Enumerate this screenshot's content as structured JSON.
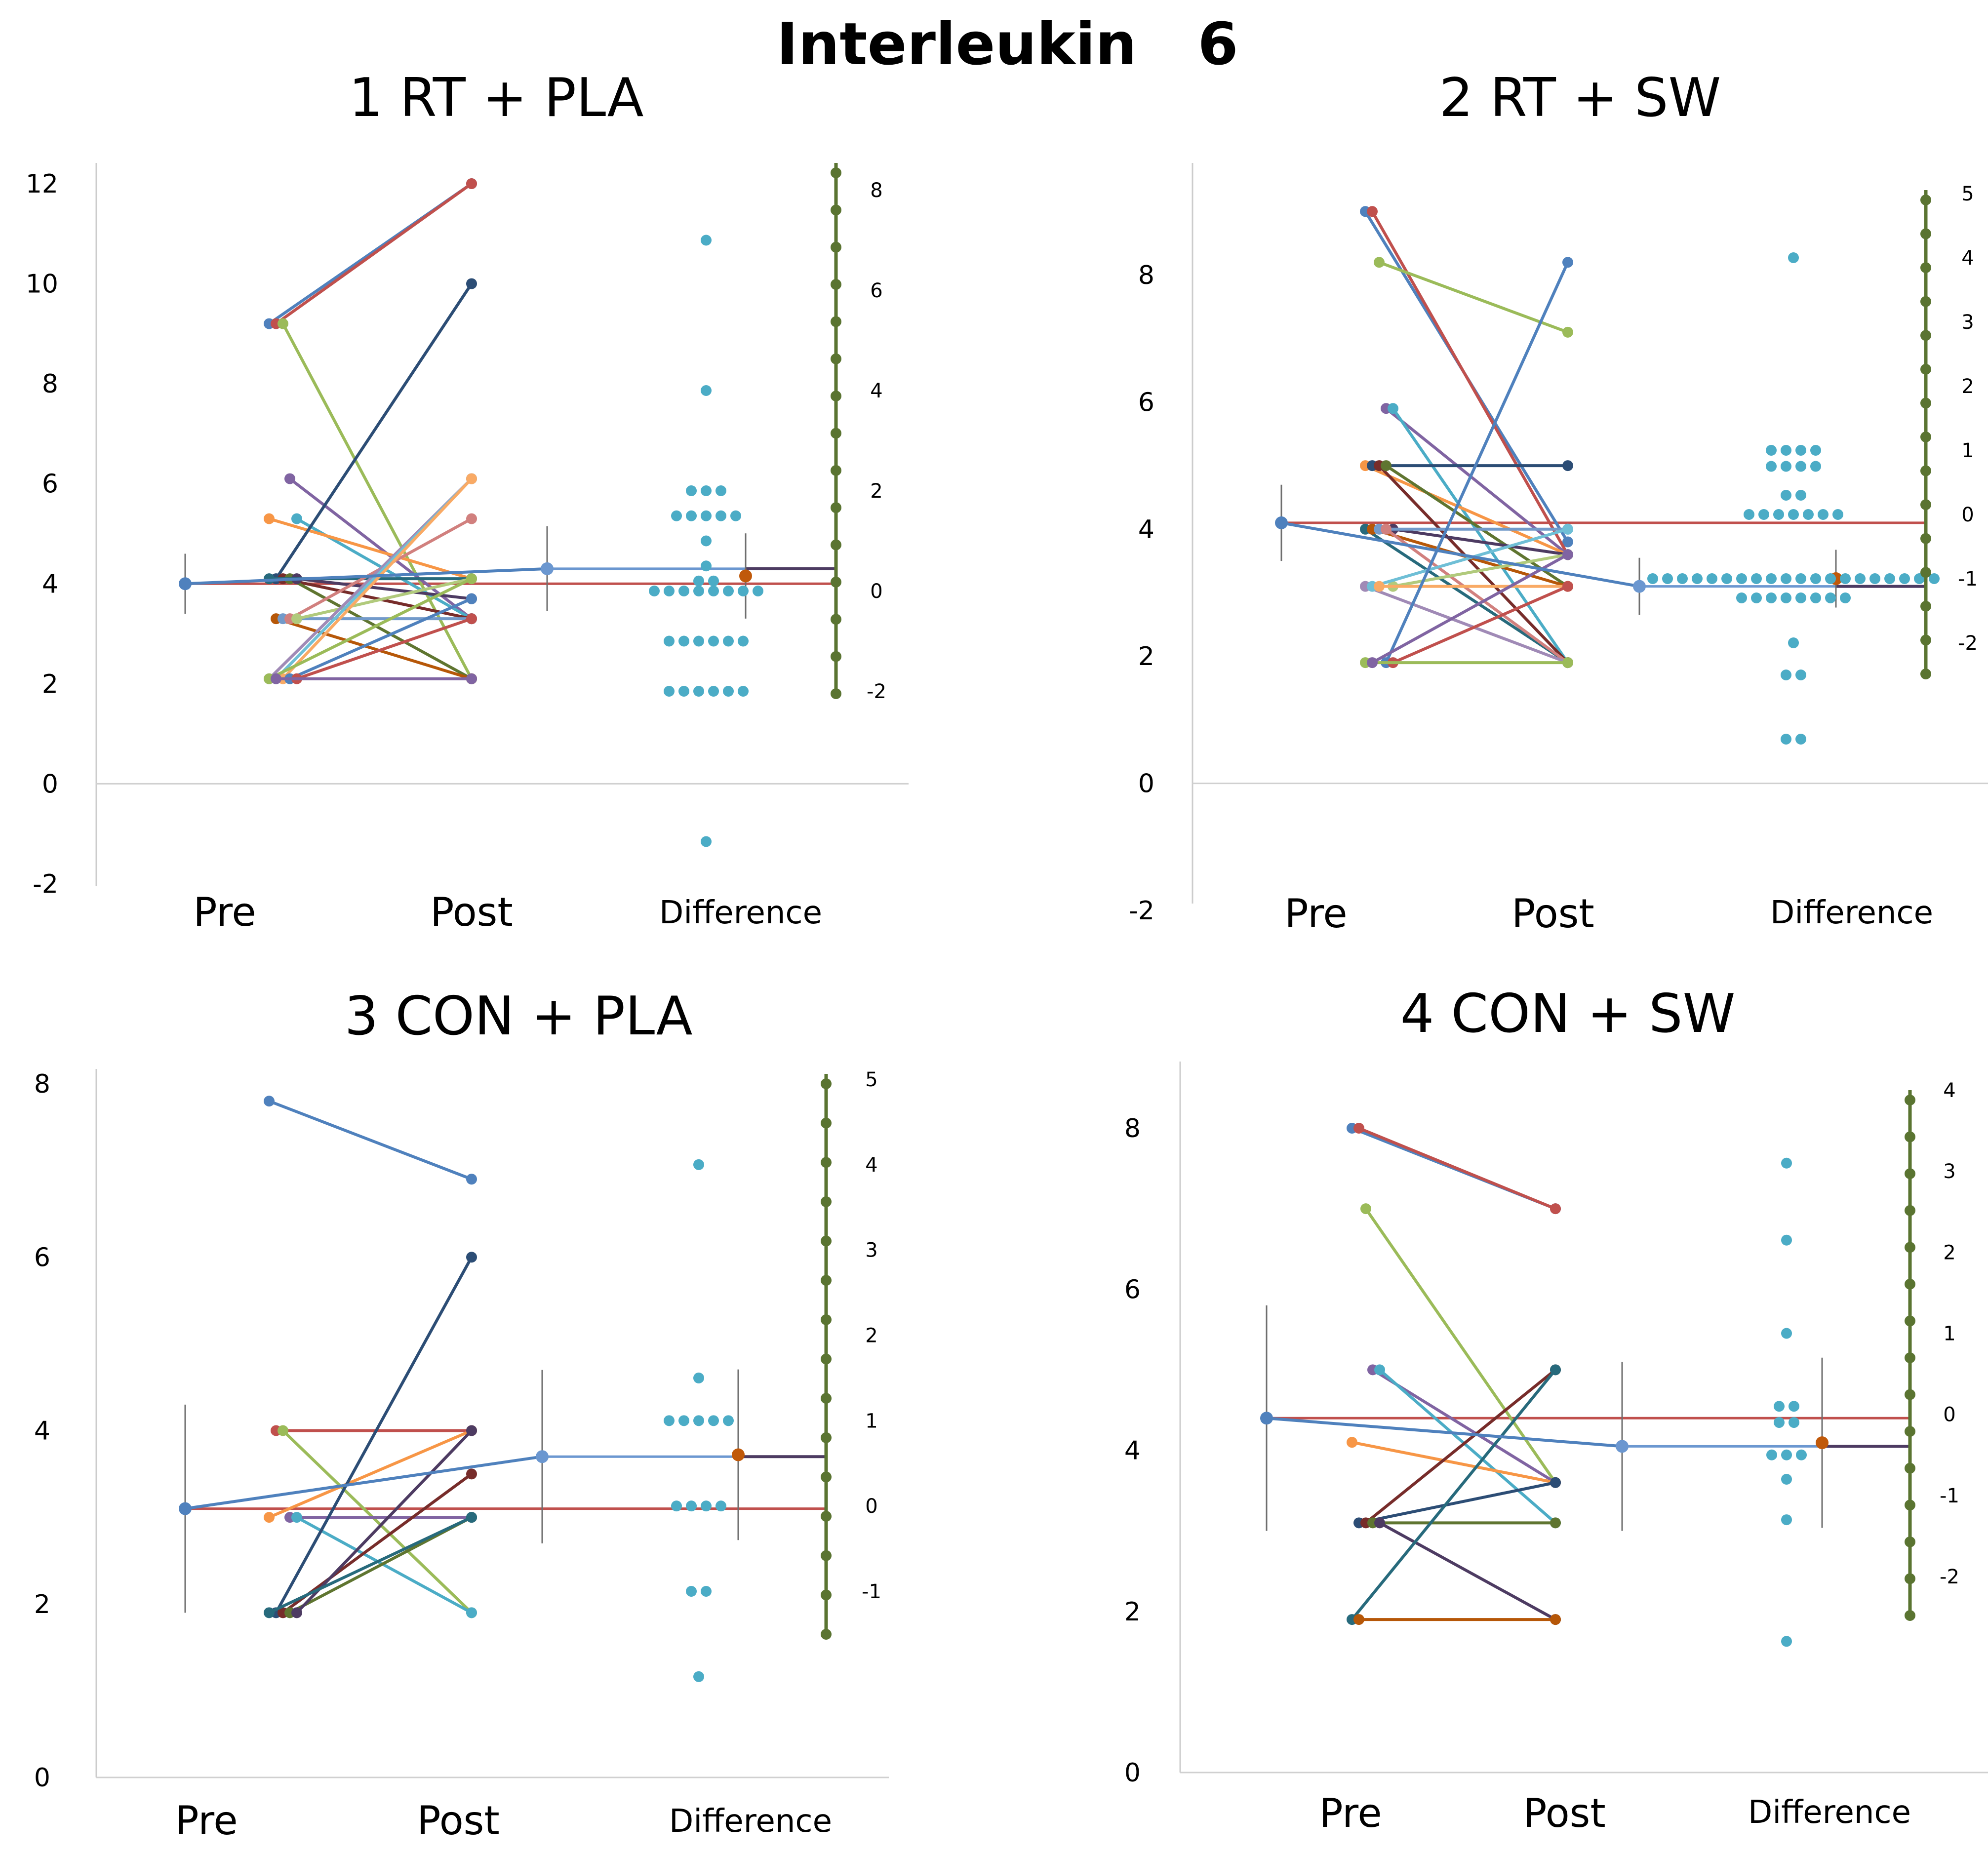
{
  "figure_title": "Interleukin   6",
  "colors": {
    "series_palette": [
      "#4f81bd",
      "#c0504d",
      "#9bbb59",
      "#8064a2",
      "#4bacc6",
      "#f79646",
      "#2c4d75",
      "#772c2a",
      "#5f7530",
      "#4d3b62",
      "#276a7c",
      "#b65708",
      "#729aca",
      "#d1807e",
      "#b1ca7c",
      "#a08ab6",
      "#6fbfd6",
      "#f9aa65"
    ],
    "difference_dots": "#4bacc6",
    "mean_pre": "#4f81bd",
    "mean_change": "#c0504d",
    "mean_post": "#6b97d0",
    "effect_point": "#c0590a",
    "effect_line": "#4d3b62",
    "right_axis": "#5a7431",
    "error_bar": "#6e6e6e",
    "zero_line": "#d0d0d0"
  },
  "chart_data": [
    {
      "type": "line",
      "title": "1 RT + PLA",
      "categories": [
        "Pre",
        "Post",
        "Difference"
      ],
      "y_left": {
        "range": [
          -2,
          12
        ],
        "ticks": [
          "-2",
          "0",
          "2",
          "4",
          "6",
          "8",
          "10",
          "12"
        ]
      },
      "y_right": {
        "range": [
          -2,
          8
        ],
        "ticks": [
          "-2",
          "0",
          "2",
          "4",
          "6",
          "8"
        ]
      },
      "subjects": [
        {
          "pre": 9.2,
          "post": 12.0
        },
        {
          "pre": 9.2,
          "post": 12.0
        },
        {
          "pre": 9.2,
          "post": 2.1
        },
        {
          "pre": 6.1,
          "post": 3.3
        },
        {
          "pre": 5.3,
          "post": 3.3
        },
        {
          "pre": 5.3,
          "post": 4.1
        },
        {
          "pre": 4.1,
          "post": 10.0
        },
        {
          "pre": 4.1,
          "post": 3.3
        },
        {
          "pre": 4.1,
          "post": 2.1
        },
        {
          "pre": 4.1,
          "post": 3.7
        },
        {
          "pre": 4.1,
          "post": 4.1
        },
        {
          "pre": 3.3,
          "post": 2.1
        },
        {
          "pre": 3.3,
          "post": 3.3
        },
        {
          "pre": 3.3,
          "post": 5.3
        },
        {
          "pre": 3.3,
          "post": 4.1
        },
        {
          "pre": 2.1,
          "post": 6.1
        },
        {
          "pre": 2.1,
          "post": 6.1
        },
        {
          "pre": 2.1,
          "post": 6.1
        },
        {
          "pre": 2.1,
          "post": 3.7
        },
        {
          "pre": 2.1,
          "post": 3.3
        },
        {
          "pre": 2.1,
          "post": 4.1
        },
        {
          "pre": 2.1,
          "post": 2.1
        }
      ],
      "mean_pre": 4.0,
      "mean_pre_err": 0.6,
      "mean_post": 4.3,
      "mean_post_err": 0.85,
      "differences": [
        7.0,
        4.0,
        2.0,
        2.0,
        2.0,
        1.5,
        1.5,
        1.5,
        1.5,
        1.5,
        1.0,
        0.5,
        0.2,
        0.2,
        0,
        0,
        0,
        0,
        0,
        0,
        0,
        0,
        -1.0,
        -1.0,
        -1.0,
        -1.0,
        -1.0,
        -1.0,
        -2.0,
        -2.0,
        -2.0,
        -2.0,
        -2.0,
        -2.0,
        -5.0
      ],
      "mean_difference": 0.3,
      "mean_difference_err": 0.85
    },
    {
      "type": "line",
      "title": "2 RT + SW",
      "categories": [
        "Pre",
        "Post",
        "Difference"
      ],
      "y_left": {
        "range": [
          -2,
          9.5
        ],
        "ticks": [
          "-2",
          "0",
          "2",
          "4",
          "6",
          "8"
        ]
      },
      "y_right": {
        "range": [
          -2.5,
          5
        ],
        "ticks": [
          "-2",
          "-1",
          "0",
          "1",
          "2",
          "3",
          "4",
          "5"
        ]
      },
      "subjects": [
        {
          "pre": 9.0,
          "post": 3.8
        },
        {
          "pre": 9.0,
          "post": 3.6
        },
        {
          "pre": 8.2,
          "post": 7.1
        },
        {
          "pre": 5.9,
          "post": 3.6
        },
        {
          "pre": 5.9,
          "post": 1.9
        },
        {
          "pre": 5.0,
          "post": 3.6
        },
        {
          "pre": 5.0,
          "post": 5.0
        },
        {
          "pre": 5.0,
          "post": 1.9
        },
        {
          "pre": 5.0,
          "post": 3.1
        },
        {
          "pre": 4.0,
          "post": 3.6
        },
        {
          "pre": 4.0,
          "post": 1.9
        },
        {
          "pre": 4.0,
          "post": 3.1
        },
        {
          "pre": 4.0,
          "post": 4.0
        },
        {
          "pre": 4.0,
          "post": 1.9
        },
        {
          "pre": 3.1,
          "post": 3.6
        },
        {
          "pre": 3.1,
          "post": 1.9
        },
        {
          "pre": 3.1,
          "post": 4.0
        },
        {
          "pre": 3.1,
          "post": 3.1
        },
        {
          "pre": 1.9,
          "post": 8.2
        },
        {
          "pre": 1.9,
          "post": 3.1
        },
        {
          "pre": 1.9,
          "post": 1.9
        },
        {
          "pre": 1.9,
          "post": 3.6
        }
      ],
      "mean_pre": 4.1,
      "mean_pre_err": 0.6,
      "mean_post": 3.1,
      "mean_post_err": 0.45,
      "differences": [
        4.0,
        1.0,
        1.0,
        1.0,
        1.0,
        0.75,
        0.75,
        0.75,
        0.75,
        0,
        0,
        0,
        0,
        0,
        0,
        0,
        0.3,
        0.3,
        -1.0,
        -1.0,
        -1.0,
        -1.0,
        -1.0,
        -1.0,
        -1.0,
        -1.0,
        -1.0,
        -1.0,
        -1.0,
        -1.0,
        -1.0,
        -1.0,
        -1.0,
        -1.0,
        -1.0,
        -1.0,
        -1.0,
        -1.0,
        -1.3,
        -1.3,
        -1.3,
        -1.3,
        -1.3,
        -1.3,
        -1.3,
        -1.3,
        -2.0,
        -2.5,
        -2.5,
        -3.5,
        -3.5
      ],
      "mean_difference": -1.0,
      "mean_difference_err": 0.45
    },
    {
      "type": "line",
      "title": "3 CON + PLA",
      "categories": [
        "Pre",
        "Post",
        "Difference"
      ],
      "y_left": {
        "range": [
          0,
          8
        ],
        "ticks": [
          "0",
          "2",
          "4",
          "6",
          "8"
        ]
      },
      "y_right": {
        "range": [
          -1.5,
          5
        ],
        "ticks": [
          "-1",
          "0",
          "1",
          "2",
          "3",
          "4",
          "5"
        ]
      },
      "subjects": [
        {
          "pre": 7.8,
          "post": 6.9
        },
        {
          "pre": 4.0,
          "post": 4.0
        },
        {
          "pre": 4.0,
          "post": 1.9
        },
        {
          "pre": 3.0,
          "post": 3.0
        },
        {
          "pre": 3.0,
          "post": 1.9
        },
        {
          "pre": 3.0,
          "post": 4.0
        },
        {
          "pre": 1.9,
          "post": 6.0
        },
        {
          "pre": 1.9,
          "post": 3.5
        },
        {
          "pre": 1.9,
          "post": 3.0
        },
        {
          "pre": 1.9,
          "post": 4.0
        },
        {
          "pre": 1.9,
          "post": 3.0
        }
      ],
      "mean_pre": 3.1,
      "mean_pre_err": 1.2,
      "mean_post": 3.7,
      "mean_post_err": 1.0,
      "differences": [
        4.0,
        1.5,
        1.0,
        1.0,
        1.0,
        1.0,
        1.0,
        0,
        0,
        0,
        0,
        -1.0,
        -1.0,
        -2.0
      ],
      "mean_difference": 0.6,
      "mean_difference_err": 1.0
    },
    {
      "type": "line",
      "title": "4 CON + SW",
      "categories": [
        "Pre",
        "Post",
        "Difference"
      ],
      "y_left": {
        "range": [
          0,
          8.5
        ],
        "ticks": [
          "0",
          "2",
          "4",
          "6",
          "8"
        ]
      },
      "y_right": {
        "range": [
          -2.5,
          4
        ],
        "ticks": [
          "-2",
          "-1",
          "0",
          "1",
          "2",
          "3",
          "4"
        ]
      },
      "subjects": [
        {
          "pre": 8.0,
          "post": 7.0
        },
        {
          "pre": 8.0,
          "post": 7.0
        },
        {
          "pre": 7.0,
          "post": 3.6
        },
        {
          "pre": 5.0,
          "post": 3.6
        },
        {
          "pre": 5.0,
          "post": 3.1
        },
        {
          "pre": 4.1,
          "post": 3.6
        },
        {
          "pre": 3.1,
          "post": 3.6
        },
        {
          "pre": 3.1,
          "post": 5.0
        },
        {
          "pre": 3.1,
          "post": 3.1
        },
        {
          "pre": 3.1,
          "post": 1.9
        },
        {
          "pre": 1.9,
          "post": 5.0
        },
        {
          "pre": 1.9,
          "post": 1.9
        }
      ],
      "mean_pre": 4.4,
      "mean_pre_err": 1.4,
      "mean_post": 4.05,
      "mean_post_err": 1.05,
      "differences": [
        3.1,
        2.15,
        1.0,
        0.1,
        0.1,
        -0.1,
        -0.1,
        -0.5,
        -0.5,
        -0.5,
        -0.8,
        -1.3,
        -2.8
      ],
      "mean_difference": -0.35,
      "mean_difference_err": 1.05
    }
  ]
}
